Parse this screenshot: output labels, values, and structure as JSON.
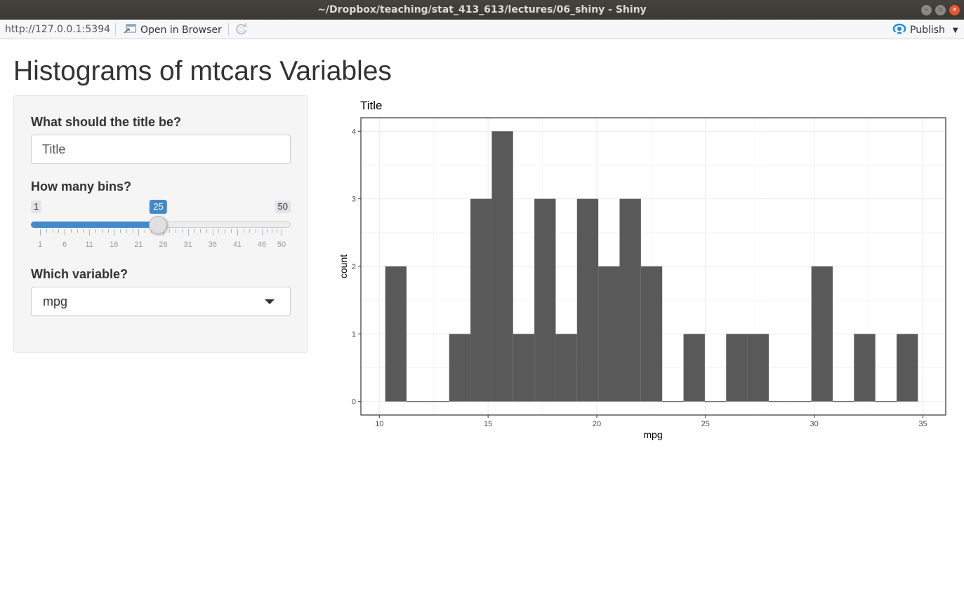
{
  "window": {
    "title": "~/Dropbox/teaching/stat_413_613/lectures/06_shiny - Shiny"
  },
  "toolbar": {
    "url": "http://127.0.0.1:5394",
    "open_in_browser": "Open in Browser",
    "publish": "Publish"
  },
  "page": {
    "title": "Histograms of mtcars Variables"
  },
  "sidebar": {
    "title_input": {
      "label": "What should the title be?",
      "value": "Title"
    },
    "bins_slider": {
      "label": "How many bins?",
      "min": 1,
      "max": 50,
      "value": 25,
      "min_label": "1",
      "max_label": "50",
      "value_label": "25",
      "tick_labels": [
        "1",
        "6",
        "11",
        "16",
        "21",
        "26",
        "31",
        "36",
        "41",
        "46",
        "50"
      ]
    },
    "variable_select": {
      "label": "Which variable?",
      "value": "mpg"
    }
  },
  "colors": {
    "accent": "#428bca",
    "bar_fill": "#595959",
    "panel_bg": "#f5f5f5"
  },
  "chart_data": {
    "type": "bar",
    "title": "Title",
    "xlabel": "mpg",
    "ylabel": "count",
    "xlim": [
      9.15,
      36.05
    ],
    "ylim": [
      -0.2,
      4.2
    ],
    "x_ticks": [
      10,
      15,
      20,
      25,
      30,
      35
    ],
    "y_ticks": [
      0,
      1,
      2,
      3,
      4
    ],
    "grid": true,
    "bin_width": 0.98,
    "bin_centers": [
      10.76,
      11.74,
      12.72,
      13.7,
      14.68,
      15.66,
      16.64,
      17.62,
      18.6,
      19.58,
      20.56,
      21.54,
      22.52,
      23.5,
      24.48,
      25.46,
      26.44,
      27.42,
      28.4,
      29.38,
      30.36,
      31.34,
      32.32,
      33.3,
      34.28
    ],
    "values": [
      2,
      0,
      0,
      1,
      3,
      4,
      1,
      3,
      1,
      3,
      2,
      3,
      2,
      0,
      1,
      0,
      1,
      1,
      0,
      0,
      2,
      0,
      1,
      0,
      1
    ]
  }
}
